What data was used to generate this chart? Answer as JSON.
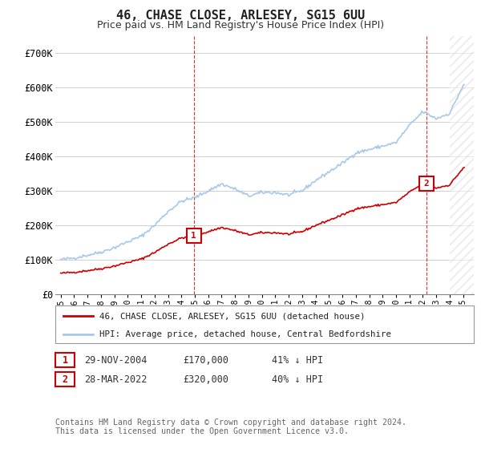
{
  "title": "46, CHASE CLOSE, ARLESEY, SG15 6UU",
  "subtitle": "Price paid vs. HM Land Registry's House Price Index (HPI)",
  "ylim": [
    0,
    750000
  ],
  "yticks": [
    0,
    100000,
    200000,
    300000,
    400000,
    500000,
    600000,
    700000
  ],
  "ytick_labels": [
    "£0",
    "£100K",
    "£200K",
    "£300K",
    "£400K",
    "£500K",
    "£600K",
    "£700K"
  ],
  "hpi_color": "#a8c8e8",
  "price_color": "#cc0000",
  "vline_color": "#cc0000",
  "marker1_x": 2004.92,
  "marker1_y": 170000,
  "marker2_x": 2022.25,
  "marker2_y": 320000,
  "vline1_x": 2004.92,
  "vline2_x": 2022.25,
  "legend_line1": "46, CHASE CLOSE, ARLESEY, SG15 6UU (detached house)",
  "legend_line2": "HPI: Average price, detached house, Central Bedfordshire",
  "table_row1": [
    "1",
    "29-NOV-2004",
    "£170,000",
    "41% ↓ HPI"
  ],
  "table_row2": [
    "2",
    "28-MAR-2022",
    "£320,000",
    "40% ↓ HPI"
  ],
  "footnote1": "Contains HM Land Registry data © Crown copyright and database right 2024.",
  "footnote2": "This data is licensed under the Open Government Licence v3.0.",
  "background_color": "#ffffff",
  "grid_color": "#d0d0d0",
  "hatch_color": "#d0d0d0",
  "xlim_left": 1994.6,
  "xlim_right": 2025.8,
  "hatch_start": 2024.0
}
